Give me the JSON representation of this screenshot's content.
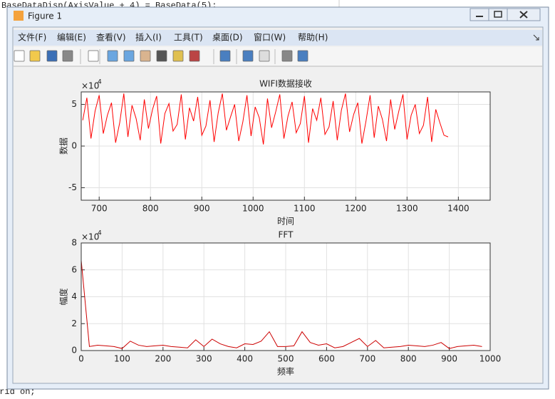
{
  "background_code": [
    "BaseDataDisp(AxisValue + 4) = BaseData(5);",
    "grid on;"
  ],
  "window": {
    "title": "Figure 1",
    "menu": [
      "文件(F)",
      "编辑(E)",
      "查看(V)",
      "插入(I)",
      "工具(T)",
      "桌面(D)",
      "窗口(W)",
      "帮助(H)"
    ]
  },
  "chart_data": [
    {
      "type": "line",
      "title": "WIFI数据接收",
      "x_label": "时间",
      "y_label": "数据",
      "y_scale_base": "×10",
      "y_scale_exponent": 4,
      "color": "#ff0000",
      "grid": true,
      "xlim": [
        665,
        1462
      ],
      "xticks": [
        700,
        800,
        900,
        1000,
        1100,
        1200,
        1300,
        1400
      ],
      "ylim": [
        -6.5,
        6.5
      ],
      "yticks": [
        -5,
        0,
        5
      ],
      "x": [
        668,
        676,
        684,
        692,
        700,
        708,
        716,
        724,
        732,
        740,
        748,
        756,
        764,
        772,
        780,
        788,
        796,
        804,
        812,
        820,
        828,
        836,
        844,
        852,
        860,
        868,
        876,
        884,
        892,
        900,
        908,
        916,
        924,
        932,
        940,
        948,
        956,
        964,
        972,
        980,
        988,
        996,
        1004,
        1012,
        1020,
        1028,
        1036,
        1044,
        1052,
        1060,
        1068,
        1076,
        1084,
        1092,
        1100,
        1108,
        1116,
        1124,
        1132,
        1140,
        1148,
        1156,
        1164,
        1172,
        1180,
        1188,
        1196,
        1204,
        1212,
        1220,
        1228,
        1236,
        1244,
        1252,
        1260,
        1268,
        1276,
        1284,
        1292,
        1300,
        1308,
        1316,
        1324,
        1332,
        1340,
        1348,
        1356,
        1364,
        1372,
        1380
      ],
      "values": [
        3.1,
        5.8,
        0.9,
        4.2,
        6.1,
        1.5,
        3.7,
        5.2,
        0.4,
        2.8,
        6.3,
        1.1,
        4.9,
        3.3,
        0.7,
        5.6,
        2.1,
        4.4,
        6.0,
        0.3,
        3.9,
        5.1,
        1.8,
        2.6,
        6.2,
        0.8,
        4.6,
        3.0,
        5.9,
        1.3,
        2.4,
        5.5,
        0.5,
        4.0,
        6.3,
        1.9,
        3.5,
        5.0,
        0.6,
        2.9,
        6.1,
        1.2,
        4.7,
        3.4,
        0.2,
        5.7,
        2.2,
        4.1,
        6.2,
        0.9,
        3.6,
        5.3,
        1.6,
        2.7,
        6.0,
        0.4,
        4.5,
        3.1,
        5.8,
        1.4,
        2.3,
        5.4,
        0.7,
        4.3,
        6.3,
        1.7,
        3.8,
        5.2,
        0.3,
        3.0,
        6.1,
        1.0,
        4.8,
        3.2,
        0.6,
        5.6,
        2.0,
        4.2,
        6.2,
        0.8,
        3.7,
        5.0,
        1.5,
        2.5,
        5.9,
        0.5,
        4.4,
        2.8,
        1.3,
        1.1
      ]
    },
    {
      "type": "line",
      "title": "FFT",
      "x_label": "频率",
      "y_label": "幅度",
      "y_scale_base": "×10",
      "y_scale_exponent": 4,
      "color": "#cc0000",
      "grid": true,
      "xlim": [
        0,
        1000
      ],
      "xticks": [
        0,
        100,
        200,
        300,
        400,
        500,
        600,
        700,
        800,
        900,
        1000
      ],
      "ylim": [
        0,
        8
      ],
      "yticks": [
        0,
        2,
        4,
        6,
        8
      ],
      "x": [
        0,
        20,
        40,
        60,
        80,
        100,
        120,
        140,
        160,
        180,
        200,
        220,
        240,
        260,
        280,
        300,
        320,
        340,
        360,
        380,
        400,
        420,
        440,
        460,
        480,
        500,
        520,
        540,
        560,
        580,
        600,
        620,
        640,
        660,
        680,
        700,
        720,
        740,
        760,
        780,
        800,
        820,
        840,
        860,
        880,
        900,
        920,
        940,
        960,
        980
      ],
      "values": [
        6.7,
        0.3,
        0.4,
        0.35,
        0.3,
        0.15,
        0.7,
        0.4,
        0.3,
        0.35,
        0.4,
        0.3,
        0.25,
        0.2,
        0.8,
        0.3,
        0.85,
        0.5,
        0.3,
        0.2,
        0.5,
        0.45,
        0.7,
        1.4,
        0.3,
        0.3,
        0.35,
        1.4,
        0.6,
        0.4,
        0.5,
        0.2,
        0.3,
        0.6,
        0.9,
        0.3,
        0.75,
        0.2,
        0.25,
        0.3,
        0.4,
        0.35,
        0.3,
        0.4,
        0.6,
        0.15,
        0.3,
        0.35,
        0.4,
        0.3
      ]
    }
  ]
}
